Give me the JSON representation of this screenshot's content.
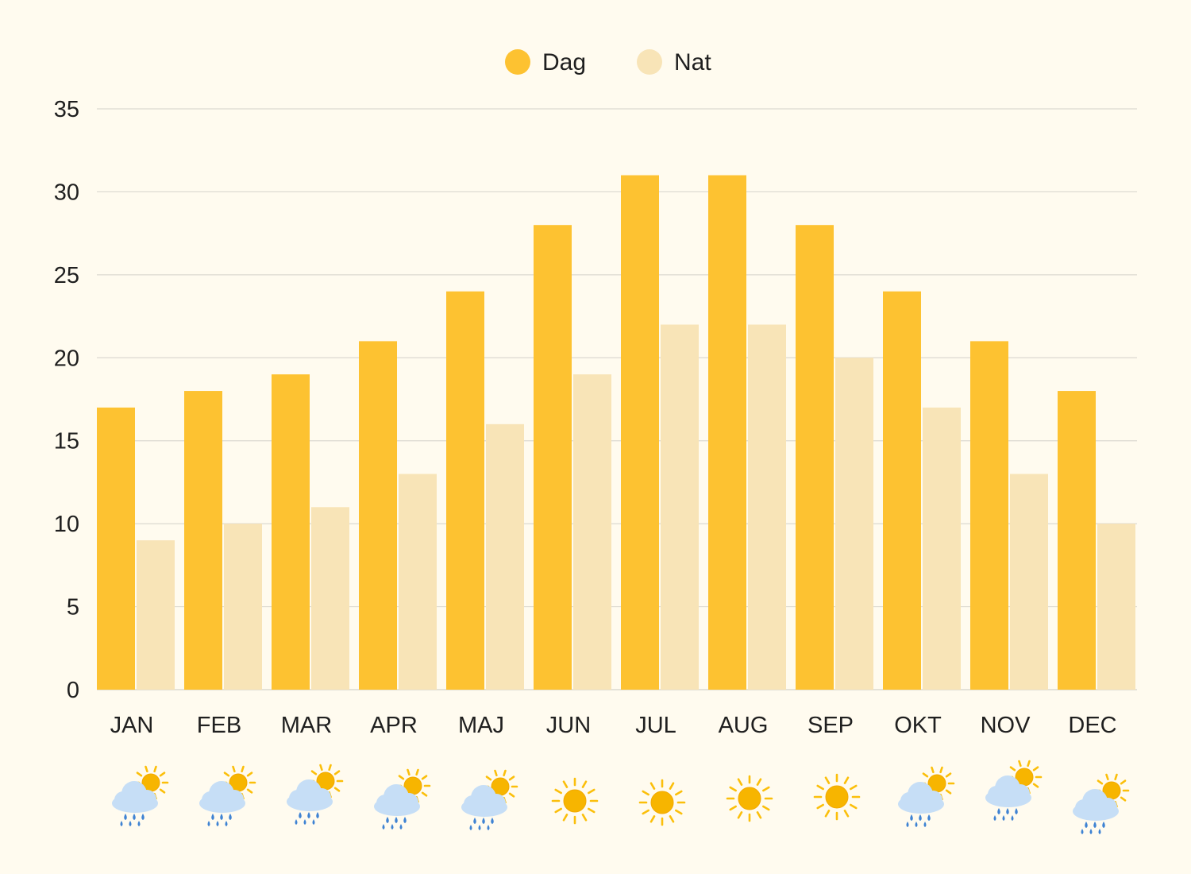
{
  "chart_data": {
    "type": "bar",
    "categories": [
      "JAN",
      "FEB",
      "MAR",
      "APR",
      "MAJ",
      "JUN",
      "JUL",
      "AUG",
      "SEP",
      "OKT",
      "NOV",
      "DEC"
    ],
    "series": [
      {
        "name": "Dag",
        "color": "#fdc231",
        "values": [
          17,
          18,
          19,
          21,
          24,
          28,
          31,
          31,
          28,
          24,
          21,
          18
        ]
      },
      {
        "name": "Nat",
        "color": "#f8e4b7",
        "values": [
          9,
          10,
          11,
          13,
          16,
          19,
          22,
          22,
          20,
          17,
          13,
          10
        ]
      }
    ],
    "ylim": [
      0,
      35
    ],
    "yticks": [
      0,
      5,
      10,
      15,
      20,
      25,
      30,
      35
    ],
    "grid": true,
    "legend_position": "top-center",
    "weather_icons": [
      "rain-sun-icon",
      "rain-sun-icon",
      "rain-sun-icon",
      "rain-sun-icon",
      "rain-sun-icon",
      "sun-icon",
      "sun-icon",
      "sun-icon",
      "sun-icon",
      "rain-sun-icon",
      "rain-sun-icon",
      "rain-sun-icon"
    ]
  },
  "colors": {
    "background": "#fffbef",
    "grid": "#dcd9d0",
    "sun": "#fbbf0b",
    "sun_core": "#f7b500",
    "cloud": "#c6def6",
    "rain": "#3f83d3"
  }
}
